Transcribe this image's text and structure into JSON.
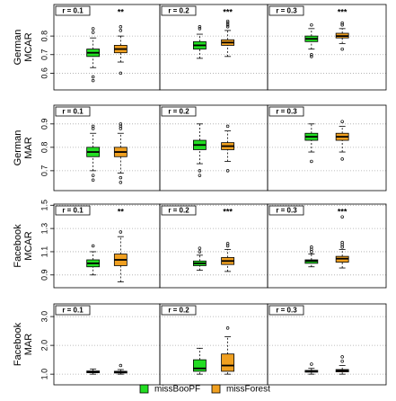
{
  "chart_data": {
    "type": "box",
    "series": [
      {
        "name": "missBooPF",
        "color": "#22dd22"
      },
      {
        "name": "missForest",
        "color": "#f0a020"
      }
    ],
    "columns": [
      "r = 0.1",
      "r = 0.2",
      "r = 0.3"
    ],
    "rows": [
      {
        "label": [
          "German",
          "MCAR"
        ],
        "ylim": [
          0.51,
          0.97
        ],
        "yticks": [
          0.6,
          0.7,
          0.8
        ],
        "panels": [
          {
            "annotation": "**",
            "boxes": [
              {
                "whislo": 0.63,
                "q1": 0.69,
                "med": 0.71,
                "q3": 0.73,
                "whishi": 0.79,
                "fliers": [
                  0.56,
                  0.58,
                  0.82,
                  0.84
                ]
              },
              {
                "whislo": 0.66,
                "q1": 0.71,
                "med": 0.73,
                "q3": 0.75,
                "whishi": 0.8,
                "fliers": [
                  0.6,
                  0.83,
                  0.85
                ]
              }
            ]
          },
          {
            "annotation": "***",
            "boxes": [
              {
                "whislo": 0.68,
                "q1": 0.73,
                "med": 0.75,
                "q3": 0.77,
                "whishi": 0.81,
                "fliers": [
                  0.84,
                  0.85
                ]
              },
              {
                "whislo": 0.69,
                "q1": 0.75,
                "med": 0.765,
                "q3": 0.78,
                "whishi": 0.83,
                "fliers": [
                  0.85,
                  0.86,
                  0.87,
                  0.88
                ]
              }
            ]
          },
          {
            "annotation": "***",
            "boxes": [
              {
                "whislo": 0.73,
                "q1": 0.77,
                "med": 0.785,
                "q3": 0.8,
                "whishi": 0.84,
                "fliers": [
                  0.69,
                  0.7,
                  0.86
                ]
              },
              {
                "whislo": 0.76,
                "q1": 0.79,
                "med": 0.8,
                "q3": 0.815,
                "whishi": 0.84,
                "fliers": [
                  0.73,
                  0.86,
                  0.87
                ]
              }
            ]
          }
        ]
      },
      {
        "label": [
          "German",
          "MAR"
        ],
        "ylim": [
          0.615,
          0.98
        ],
        "yticks": [
          0.7,
          0.8,
          0.9
        ],
        "panels": [
          {
            "boxes": [
              {
                "whislo": 0.7,
                "q1": 0.76,
                "med": 0.78,
                "q3": 0.8,
                "whishi": 0.86,
                "fliers": [
                  0.66,
                  0.68,
                  0.88,
                  0.89
                ]
              },
              {
                "whislo": 0.69,
                "q1": 0.76,
                "med": 0.78,
                "q3": 0.8,
                "whishi": 0.86,
                "fliers": [
                  0.65,
                  0.67,
                  0.88,
                  0.89,
                  0.9
                ]
              }
            ]
          },
          {
            "boxes": [
              {
                "whislo": 0.73,
                "q1": 0.79,
                "med": 0.81,
                "q3": 0.83,
                "whishi": 0.9,
                "fliers": [
                  0.68,
                  0.7
                ]
              },
              {
                "whislo": 0.74,
                "q1": 0.79,
                "med": 0.805,
                "q3": 0.82,
                "whishi": 0.87,
                "fliers": [
                  0.7,
                  0.89
                ]
              }
            ]
          },
          {
            "boxes": [
              {
                "whislo": 0.78,
                "q1": 0.83,
                "med": 0.845,
                "q3": 0.86,
                "whishi": 0.9,
                "fliers": [
                  0.74
                ]
              },
              {
                "whislo": 0.78,
                "q1": 0.83,
                "med": 0.845,
                "q3": 0.86,
                "whishi": 0.89,
                "fliers": [
                  0.75,
                  0.91
                ]
              }
            ]
          }
        ]
      },
      {
        "label": [
          "Facebook",
          "MCAR"
        ],
        "ylim": [
          0.79,
          1.51
        ],
        "yticks": [
          0.9,
          1.1,
          1.3,
          1.5
        ],
        "panels": [
          {
            "annotation": "**",
            "boxes": [
              {
                "whislo": 0.9,
                "q1": 0.97,
                "med": 1.0,
                "q3": 1.03,
                "whishi": 1.1,
                "fliers": [
                  1.15
                ]
              },
              {
                "whislo": 0.84,
                "q1": 0.98,
                "med": 1.03,
                "q3": 1.08,
                "whishi": 1.23,
                "fliers": [
                  1.27
                ]
              }
            ]
          },
          {
            "annotation": "***",
            "boxes": [
              {
                "whislo": 0.94,
                "q1": 0.98,
                "med": 1.0,
                "q3": 1.02,
                "whishi": 1.07,
                "fliers": [
                  1.1,
                  1.13
                ]
              },
              {
                "whislo": 0.93,
                "q1": 0.99,
                "med": 1.02,
                "q3": 1.05,
                "whishi": 1.12,
                "fliers": [
                  1.15,
                  1.17
                ]
              }
            ]
          },
          {
            "annotation": "***",
            "boxes": [
              {
                "whislo": 0.97,
                "q1": 1.0,
                "med": 1.02,
                "q3": 1.03,
                "whishi": 1.08,
                "fliers": [
                  1.1,
                  1.12,
                  1.14
                ]
              },
              {
                "whislo": 0.96,
                "q1": 1.01,
                "med": 1.04,
                "q3": 1.06,
                "whishi": 1.12,
                "fliers": [
                  1.14,
                  1.16,
                  1.18,
                  1.4
                ]
              }
            ]
          }
        ]
      },
      {
        "label": [
          "Facebook",
          "MAR"
        ],
        "ylim": [
          0.63,
          3.44
        ],
        "yticks": [
          {
            "value": 1,
            "label": "1.0"
          },
          {
            "value": 2,
            "label": "2.0"
          },
          {
            "value": 3,
            "label": "3.0"
          }
        ],
        "panels": [
          {
            "boxes": [
              {
                "whislo": 1.0,
                "q1": 1.05,
                "med": 1.08,
                "q3": 1.11,
                "whishi": 1.18,
                "fliers": []
              },
              {
                "whislo": 1.0,
                "q1": 1.04,
                "med": 1.07,
                "q3": 1.1,
                "whishi": 1.16,
                "fliers": [
                  1.3
                ]
              }
            ]
          },
          {
            "boxes": [
              {
                "whislo": 1.0,
                "q1": 1.1,
                "med": 1.2,
                "q3": 1.5,
                "whishi": 1.9,
                "fliers": []
              },
              {
                "whislo": 1.0,
                "q1": 1.1,
                "med": 1.3,
                "q3": 1.7,
                "whishi": 2.3,
                "fliers": [
                  2.6
                ]
              }
            ]
          },
          {
            "boxes": [
              {
                "whislo": 1.0,
                "q1": 1.07,
                "med": 1.1,
                "q3": 1.13,
                "whishi": 1.2,
                "fliers": [
                  1.35
                ]
              },
              {
                "whislo": 1.0,
                "q1": 1.08,
                "med": 1.12,
                "q3": 1.16,
                "whishi": 1.3,
                "fliers": [
                  1.45,
                  1.6
                ]
              }
            ]
          }
        ]
      }
    ]
  }
}
